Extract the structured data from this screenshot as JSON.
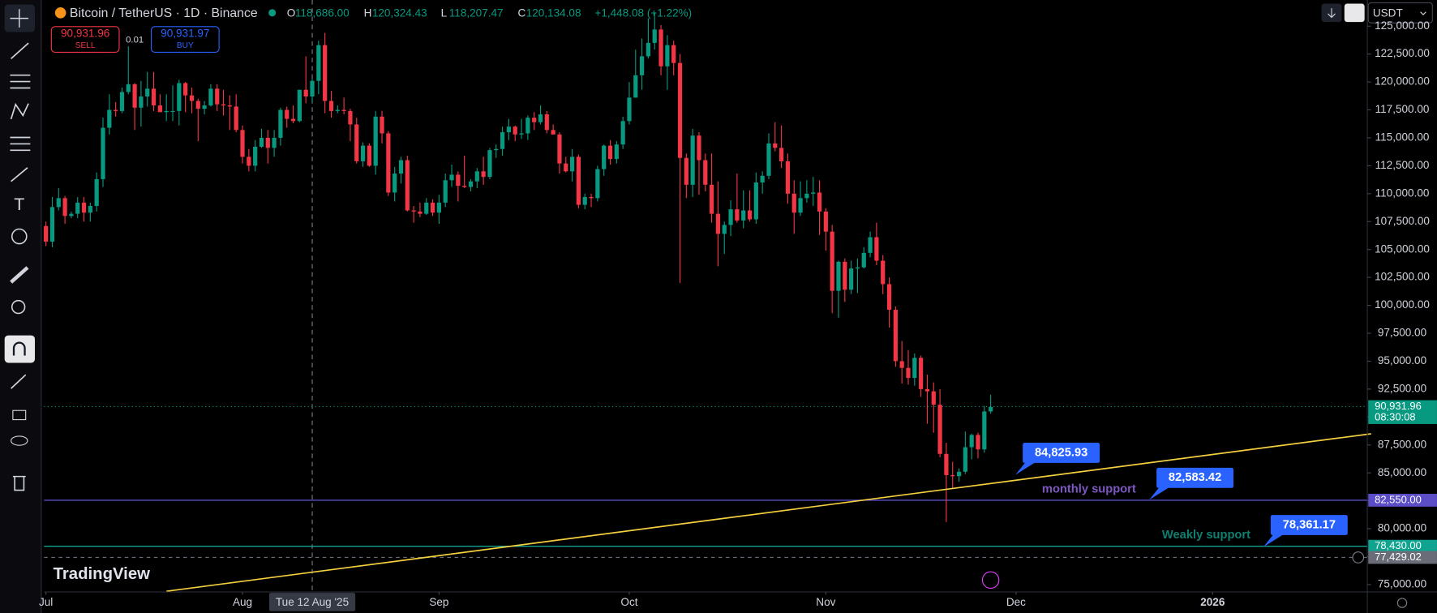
{
  "chart_data": {
    "type": "candlestick",
    "title": "Bitcoin / TetherUS · 1D · Binance",
    "ohlc_header": [
      {
        "key": "O",
        "value": "118,686.00"
      },
      {
        "key": "H",
        "value": "120,324.43"
      },
      {
        "key": "L",
        "value": "118,207.47"
      },
      {
        "key": "C",
        "value": "120,134.08"
      }
    ],
    "change": "+1,448.08 (+1.22%)",
    "sell": {
      "price": "90,931.96",
      "label": "SELL"
    },
    "spread": "0.01",
    "buy": {
      "price": "90,931.97",
      "label": "BUY"
    },
    "currency": "USDT",
    "brand": "TradingView",
    "up_color": "#089981",
    "down_color": "#f23645",
    "xlim": [
      -0.3,
      208.4
    ],
    "ylim": [
      74340,
      127340
    ],
    "xticks": [
      {
        "value": 0,
        "label": "Jul"
      },
      {
        "value": 31,
        "label": "Aug"
      },
      {
        "value": 62,
        "label": "Sep"
      },
      {
        "value": 92,
        "label": "Oct"
      },
      {
        "value": 123,
        "label": "Nov"
      },
      {
        "value": 153,
        "label": "Dec"
      },
      {
        "value": 184,
        "label": "2026"
      }
    ],
    "yticks": [
      {
        "value": 75000,
        "label": "75,000.00"
      },
      {
        "value": 77500,
        "label": "77,500.00"
      },
      {
        "value": 80000,
        "label": "80,000.00"
      },
      {
        "value": 82500,
        "label": "82,500.00"
      },
      {
        "value": 85000,
        "label": "85,000.00"
      },
      {
        "value": 87500,
        "label": "87,500.00"
      },
      {
        "value": 90000,
        "label": "90,000.00"
      },
      {
        "value": 92500,
        "label": "92,500.00"
      },
      {
        "value": 95000,
        "label": "95,000.00"
      },
      {
        "value": 97500,
        "label": "97,500.00"
      },
      {
        "value": 100000,
        "label": "100,000.00"
      },
      {
        "value": 102500,
        "label": "102,500.00"
      },
      {
        "value": 105000,
        "label": "105,000.00"
      },
      {
        "value": 107500,
        "label": "107,500.00"
      },
      {
        "value": 110000,
        "label": "110,000.00"
      },
      {
        "value": 112500,
        "label": "112,500.00"
      },
      {
        "value": 115000,
        "label": "115,000.00"
      },
      {
        "value": 117500,
        "label": "117,500.00"
      },
      {
        "value": 120000,
        "label": "120,000.00"
      },
      {
        "value": 122500,
        "label": "122,500.00"
      },
      {
        "value": 125000,
        "label": "125,000.00"
      }
    ],
    "crosshair": {
      "x": 42,
      "label": "Tue 12 Aug '25"
    },
    "price_lines": [
      {
        "value": 90931.96,
        "label": "90,931.96",
        "countdown": "08:30:08",
        "color": "#089981",
        "style": "dotted"
      },
      {
        "value": 82550,
        "label": "82,550.00",
        "color": "#5b4ec7",
        "style": "solid"
      },
      {
        "value": 78430,
        "label": "78,430.00",
        "color": "#10a38f",
        "style": "solid"
      },
      {
        "value": 77429.02,
        "label": "77,429.02",
        "color": "#6a6d78",
        "style": "dashed"
      }
    ],
    "trendline": {
      "color": "#f4d03f",
      "start": [
        19,
        74400
      ],
      "end": [
        209,
        88500
      ]
    },
    "callouts": [
      {
        "x": 152.9,
        "value": 84825.93,
        "label": "84,825.93"
      },
      {
        "x": 174,
        "value": 82583.42,
        "label": "82,583.42"
      },
      {
        "x": 192,
        "value": 78361.17,
        "label": "78,361.17"
      }
    ],
    "annotations": [
      {
        "text": "monthly support",
        "x": 164.5,
        "y": 83530,
        "color": "#7e57c2"
      },
      {
        "text": "Weakly support",
        "x": 183,
        "y": 79426,
        "color": "#0f7f70"
      }
    ],
    "candles": [
      [
        107100,
        107500,
        105300,
        105700
      ],
      [
        105700,
        109700,
        105200,
        108800
      ],
      [
        108800,
        110500,
        108500,
        109600
      ],
      [
        109600,
        109800,
        107300,
        108000
      ],
      [
        108000,
        108400,
        107800,
        108200
      ],
      [
        108200,
        109700,
        107800,
        109200
      ],
      [
        109200,
        109700,
        107500,
        108300
      ],
      [
        108300,
        109200,
        107500,
        108900
      ],
      [
        108900,
        111900,
        108400,
        111300
      ],
      [
        111300,
        116800,
        110600,
        115900
      ],
      [
        115900,
        118900,
        115300,
        117500
      ],
      [
        117500,
        118200,
        116900,
        117400
      ],
      [
        117400,
        119500,
        117200,
        119100
      ],
      [
        119100,
        123200,
        118900,
        119800
      ],
      [
        119800,
        119900,
        115700,
        117700
      ],
      [
        117700,
        120100,
        116000,
        118700
      ],
      [
        118700,
        120900,
        117800,
        119400
      ],
      [
        119400,
        120900,
        117400,
        117900
      ],
      [
        117900,
        118900,
        117300,
        117300
      ],
      [
        117300,
        118900,
        116500,
        117400
      ],
      [
        117400,
        119700,
        116500,
        117400
      ],
      [
        117400,
        120200,
        116100,
        119900
      ],
      [
        119900,
        120000,
        117300,
        118800
      ],
      [
        118800,
        119500,
        117200,
        118300
      ],
      [
        118300,
        118500,
        114700,
        117600
      ],
      [
        117600,
        118300,
        117100,
        117900
      ],
      [
        117900,
        119800,
        117800,
        119400
      ],
      [
        119400,
        119800,
        117400,
        118000
      ],
      [
        118000,
        119300,
        117000,
        117900
      ],
      [
        117900,
        118800,
        115700,
        117800
      ],
      [
        117800,
        118900,
        115500,
        115700
      ],
      [
        115700,
        116100,
        112700,
        113300
      ],
      [
        113300,
        114000,
        112000,
        112500
      ],
      [
        112500,
        114800,
        112000,
        114200
      ],
      [
        114200,
        115800,
        114100,
        115000
      ],
      [
        115000,
        115700,
        112700,
        114100
      ],
      [
        114100,
        115700,
        113300,
        115000
      ],
      [
        115000,
        117700,
        114300,
        117500
      ],
      [
        117500,
        117800,
        115900,
        116700
      ],
      [
        116700,
        117900,
        116300,
        116500
      ],
      [
        116500,
        119300,
        116400,
        119300
      ],
      [
        119300,
        122300,
        118100,
        118700
      ],
      [
        118700,
        120300,
        118200,
        120100
      ],
      [
        120100,
        123700,
        118900,
        123300
      ],
      [
        123300,
        124400,
        117200,
        118300
      ],
      [
        118300,
        119200,
        116800,
        117400
      ],
      [
        117400,
        117900,
        117200,
        117500
      ],
      [
        117500,
        118600,
        117100,
        117400
      ],
      [
        117400,
        117600,
        114700,
        116200
      ],
      [
        116200,
        116800,
        112700,
        112900
      ],
      [
        112900,
        114600,
        112400,
        114300
      ],
      [
        114300,
        114500,
        112400,
        112500
      ],
      [
        112500,
        117400,
        111700,
        116900
      ],
      [
        116900,
        117400,
        114500,
        115400
      ],
      [
        115400,
        115600,
        109800,
        110100
      ],
      [
        110100,
        112400,
        109300,
        111800
      ],
      [
        111800,
        113300,
        110900,
        113000
      ],
      [
        113000,
        113400,
        108400,
        108500
      ],
      [
        108500,
        108900,
        107400,
        108400
      ],
      [
        108400,
        109200,
        107900,
        108200
      ],
      [
        108200,
        109600,
        108100,
        109200
      ],
      [
        109200,
        109500,
        108000,
        108300
      ],
      [
        108300,
        109900,
        107300,
        109200
      ],
      [
        109200,
        111800,
        108800,
        111200
      ],
      [
        111200,
        112600,
        110600,
        111700
      ],
      [
        111700,
        112000,
        109300,
        110700
      ],
      [
        110700,
        113400,
        110500,
        110600
      ],
      [
        110600,
        111300,
        110200,
        111100
      ],
      [
        111100,
        112300,
        110500,
        112000
      ],
      [
        112000,
        113300,
        110800,
        111500
      ],
      [
        111500,
        114100,
        111300,
        113900
      ],
      [
        113900,
        114400,
        113200,
        114000
      ],
      [
        114000,
        116000,
        113400,
        115500
      ],
      [
        115500,
        116700,
        114800,
        116000
      ],
      [
        116000,
        116100,
        114700,
        115300
      ],
      [
        115300,
        116700,
        114900,
        115400
      ],
      [
        115400,
        117000,
        114800,
        116800
      ],
      [
        116800,
        117300,
        115700,
        116400
      ],
      [
        116400,
        117900,
        116200,
        117100
      ],
      [
        117100,
        117400,
        115400,
        115700
      ],
      [
        115700,
        116200,
        115300,
        115300
      ],
      [
        115300,
        115500,
        111800,
        112700
      ],
      [
        112700,
        113300,
        111900,
        112000
      ],
      [
        112000,
        114000,
        111100,
        113300
      ],
      [
        113300,
        113500,
        108700,
        109000
      ],
      [
        109000,
        110000,
        108600,
        109700
      ],
      [
        109700,
        110000,
        108800,
        109600
      ],
      [
        109600,
        112500,
        109300,
        112200
      ],
      [
        112200,
        114400,
        111600,
        114300
      ],
      [
        114300,
        114800,
        112600,
        113100
      ],
      [
        113100,
        114700,
        112700,
        114400
      ],
      [
        114400,
        116900,
        114000,
        116500
      ],
      [
        116500,
        120000,
        116200,
        118600
      ],
      [
        118600,
        122900,
        118600,
        120600
      ],
      [
        120600,
        123900,
        119300,
        122300
      ],
      [
        122300,
        125700,
        122100,
        123500
      ],
      [
        123500,
        126200,
        122900,
        124700
      ],
      [
        124700,
        125100,
        120600,
        121400
      ],
      [
        121400,
        124200,
        119300,
        123300
      ],
      [
        123300,
        123700,
        120600,
        121700
      ],
      [
        121700,
        122500,
        102000,
        113200
      ],
      [
        113200,
        113600,
        109600,
        110800
      ],
      [
        110800,
        115800,
        109700,
        115200
      ],
      [
        115200,
        115500,
        109900,
        113000
      ],
      [
        113000,
        113600,
        110200,
        110800
      ],
      [
        110800,
        113600,
        107400,
        108200
      ],
      [
        108200,
        111100,
        103500,
        106400
      ],
      [
        106400,
        107500,
        104600,
        107200
      ],
      [
        107200,
        109400,
        106200,
        108600
      ],
      [
        108600,
        111800,
        107400,
        107600
      ],
      [
        107600,
        110300,
        106900,
        108500
      ],
      [
        108500,
        110300,
        107500,
        107700
      ],
      [
        107700,
        111900,
        107300,
        111000
      ],
      [
        111000,
        112000,
        110000,
        111600
      ],
      [
        111600,
        115400,
        111300,
        114500
      ],
      [
        114500,
        116400,
        113800,
        114100
      ],
      [
        114100,
        116100,
        112300,
        112900
      ],
      [
        112900,
        113600,
        109100,
        110000
      ],
      [
        110000,
        111200,
        106400,
        108300
      ],
      [
        108300,
        111100,
        108000,
        109600
      ],
      [
        109600,
        111200,
        109200,
        110000
      ],
      [
        110000,
        111500,
        108900,
        110100
      ],
      [
        110100,
        111200,
        106300,
        108400
      ],
      [
        108400,
        108700,
        104900,
        106600
      ],
      [
        106600,
        107200,
        99300,
        101300
      ],
      [
        101300,
        104000,
        98900,
        103900
      ],
      [
        103900,
        104200,
        100300,
        101400
      ],
      [
        101400,
        104000,
        101000,
        103300
      ],
      [
        103300,
        104200,
        101100,
        103400
      ],
      [
        103400,
        105200,
        103300,
        104700
      ],
      [
        104700,
        106600,
        104300,
        106100
      ],
      [
        106100,
        107400,
        103600,
        104000
      ],
      [
        104000,
        104500,
        101000,
        101900
      ],
      [
        101900,
        102500,
        98000,
        99600
      ],
      [
        99600,
        99900,
        94500,
        95000
      ],
      [
        95000,
        96800,
        93000,
        94400
      ],
      [
        94400,
        96000,
        92900,
        93500
      ],
      [
        93500,
        95700,
        92800,
        95300
      ],
      [
        95300,
        95500,
        91800,
        92500
      ],
      [
        92500,
        93800,
        89400,
        92300
      ],
      [
        92300,
        93100,
        88600,
        91100
      ],
      [
        91100,
        92500,
        86400,
        86700
      ],
      [
        86700,
        87700,
        80600,
        84800
      ],
      [
        84800,
        86000,
        83600,
        84700
      ],
      [
        84700,
        85400,
        84200,
        85100
      ],
      [
        85100,
        88700,
        84900,
        87300
      ],
      [
        87300,
        88500,
        86200,
        88400
      ],
      [
        88400,
        88600,
        86300,
        87100
      ],
      [
        87100,
        91000,
        86800,
        90500
      ],
      [
        90500,
        92000,
        90300,
        90900
      ]
    ]
  }
}
